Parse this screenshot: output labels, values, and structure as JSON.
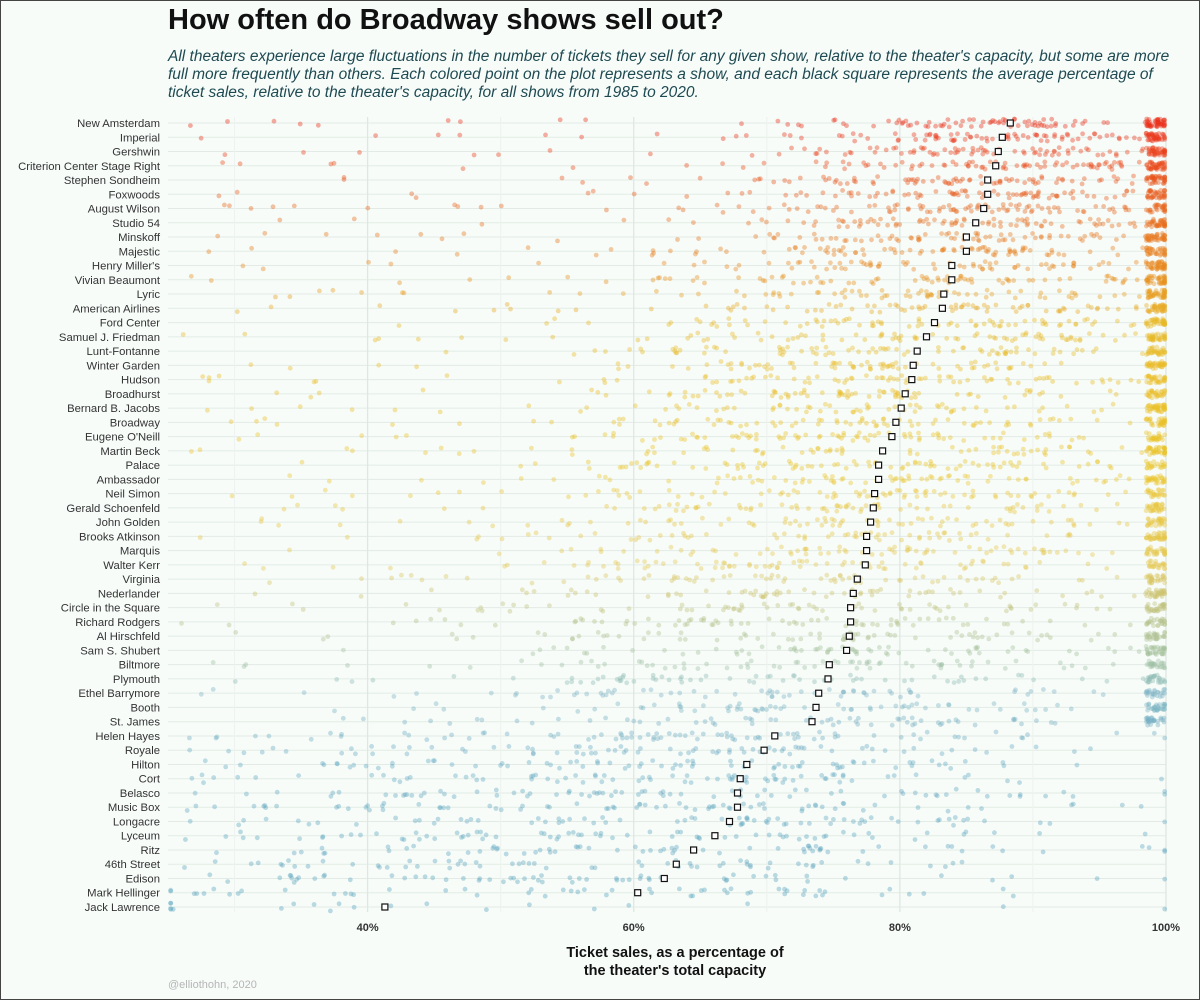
{
  "chart_data": {
    "type": "scatter",
    "title": "How often do Broadway shows sell out?",
    "subtitle": "All theaters experience large fluctuations in the number of tickets they sell for any given show, relative to the theater's capacity, but some are more full more frequently than others. Each colored point on the plot represents a show, and each black square represents the average percentage of ticket sales, relative to the theater's capacity, for all shows from 1985 to 2020.",
    "xlabel": "Ticket sales, as a percentage of\nthe theater's total capacity",
    "ylabel": "",
    "caption": "@elliothohn, 2020",
    "xlim": [
      0.25,
      1.0
    ],
    "x_ticks": [
      0.4,
      0.6,
      0.8,
      1.0
    ],
    "x_tick_labels": [
      "40%",
      "60%",
      "80%",
      "100%"
    ],
    "grid": true,
    "colors": {
      "red": "#e8321b",
      "orange": "#e8821e",
      "yellow": "#e9bf25",
      "sage": "#9fbf9c",
      "blue": "#5ba6c0",
      "mean_marker": "#111111"
    },
    "theaters": [
      {
        "name": "New Amsterdam",
        "mean": 0.883
      },
      {
        "name": "Imperial",
        "mean": 0.877
      },
      {
        "name": "Gershwin",
        "mean": 0.874
      },
      {
        "name": "Criterion Center Stage Right",
        "mean": 0.872
      },
      {
        "name": "Stephen Sondheim",
        "mean": 0.866
      },
      {
        "name": "Foxwoods",
        "mean": 0.866
      },
      {
        "name": "August Wilson",
        "mean": 0.863
      },
      {
        "name": "Studio 54",
        "mean": 0.857
      },
      {
        "name": "Minskoff",
        "mean": 0.85
      },
      {
        "name": "Majestic",
        "mean": 0.85
      },
      {
        "name": "Henry Miller's",
        "mean": 0.839
      },
      {
        "name": "Vivian Beaumont",
        "mean": 0.839
      },
      {
        "name": "Lyric",
        "mean": 0.833
      },
      {
        "name": "American Airlines",
        "mean": 0.832
      },
      {
        "name": "Ford Center",
        "mean": 0.826
      },
      {
        "name": "Samuel J. Friedman",
        "mean": 0.82
      },
      {
        "name": "Lunt-Fontanne",
        "mean": 0.813
      },
      {
        "name": "Winter Garden",
        "mean": 0.81
      },
      {
        "name": "Hudson",
        "mean": 0.809
      },
      {
        "name": "Broadhurst",
        "mean": 0.804
      },
      {
        "name": "Bernard B. Jacobs",
        "mean": 0.801
      },
      {
        "name": "Broadway",
        "mean": 0.797
      },
      {
        "name": "Eugene O'Neill",
        "mean": 0.794
      },
      {
        "name": "Martin Beck",
        "mean": 0.787
      },
      {
        "name": "Palace",
        "mean": 0.784
      },
      {
        "name": "Ambassador",
        "mean": 0.784
      },
      {
        "name": "Neil Simon",
        "mean": 0.781
      },
      {
        "name": "Gerald Schoenfeld",
        "mean": 0.78
      },
      {
        "name": "John Golden",
        "mean": 0.778
      },
      {
        "name": "Brooks Atkinson",
        "mean": 0.775
      },
      {
        "name": "Marquis",
        "mean": 0.775
      },
      {
        "name": "Walter Kerr",
        "mean": 0.774
      },
      {
        "name": "Virginia",
        "mean": 0.768
      },
      {
        "name": "Nederlander",
        "mean": 0.765
      },
      {
        "name": "Circle in the Square",
        "mean": 0.763
      },
      {
        "name": "Richard Rodgers",
        "mean": 0.763
      },
      {
        "name": "Al Hirschfeld",
        "mean": 0.762
      },
      {
        "name": "Sam S. Shubert",
        "mean": 0.76
      },
      {
        "name": "Biltmore",
        "mean": 0.747
      },
      {
        "name": "Plymouth",
        "mean": 0.746
      },
      {
        "name": "Ethel Barrymore",
        "mean": 0.739
      },
      {
        "name": "Booth",
        "mean": 0.737
      },
      {
        "name": "St. James",
        "mean": 0.734
      },
      {
        "name": "Helen Hayes",
        "mean": 0.706
      },
      {
        "name": "Royale",
        "mean": 0.698
      },
      {
        "name": "Hilton",
        "mean": 0.685
      },
      {
        "name": "Cort",
        "mean": 0.68
      },
      {
        "name": "Belasco",
        "mean": 0.678
      },
      {
        "name": "Music Box",
        "mean": 0.678
      },
      {
        "name": "Longacre",
        "mean": 0.672
      },
      {
        "name": "Lyceum",
        "mean": 0.661
      },
      {
        "name": "Ritz",
        "mean": 0.645
      },
      {
        "name": "46th Street",
        "mean": 0.632
      },
      {
        "name": "Edison",
        "mean": 0.623
      },
      {
        "name": "Mark Hellinger",
        "mean": 0.603
      },
      {
        "name": "Jack Lawrence",
        "mean": 0.413
      }
    ]
  }
}
